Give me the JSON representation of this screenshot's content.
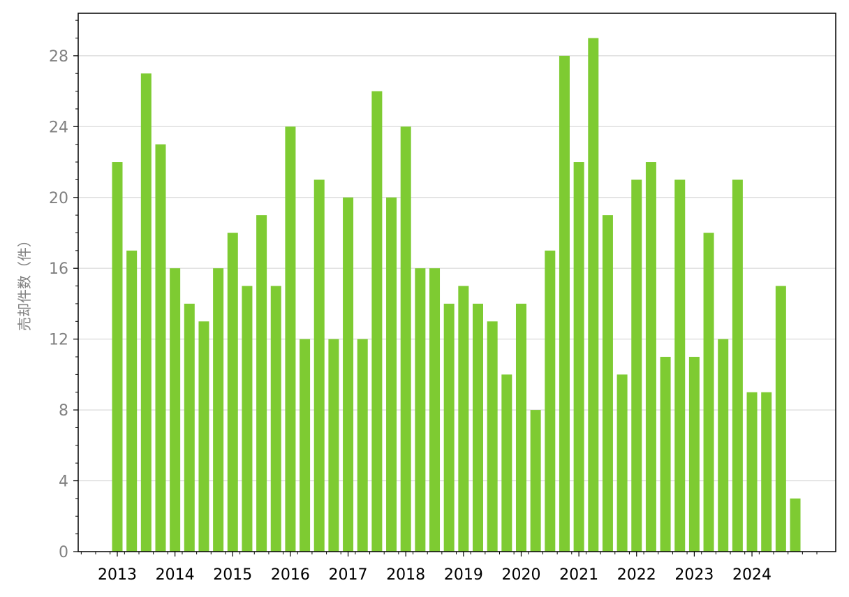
{
  "chart_data": {
    "type": "bar",
    "title": "",
    "xlabel": "",
    "ylabel": "売却件数（件）",
    "ylim": [
      0,
      30.4
    ],
    "yticks": [
      0,
      4,
      8,
      12,
      16,
      20,
      24,
      28
    ],
    "grid": "horizontal",
    "bar_color": "#7ecb32",
    "grid_color": "#d9d9d9",
    "year_labels": [
      "2013",
      "2014",
      "2015",
      "2016",
      "2017",
      "2018",
      "2019",
      "2020",
      "2021",
      "2022",
      "2023",
      "2024"
    ],
    "quarters": [
      "2013Q1",
      "2013Q2",
      "2013Q3",
      "2013Q4",
      "2014Q1",
      "2014Q2",
      "2014Q3",
      "2014Q4",
      "2015Q1",
      "2015Q2",
      "2015Q3",
      "2015Q4",
      "2016Q1",
      "2016Q2",
      "2016Q3",
      "2016Q4",
      "2017Q1",
      "2017Q2",
      "2017Q3",
      "2017Q4",
      "2018Q1",
      "2018Q2",
      "2018Q3",
      "2018Q4",
      "2019Q1",
      "2019Q2",
      "2019Q3",
      "2019Q4",
      "2020Q1",
      "2020Q2",
      "2020Q3",
      "2020Q4",
      "2021Q1",
      "2021Q2",
      "2021Q3",
      "2021Q4",
      "2022Q1",
      "2022Q2",
      "2022Q3",
      "2022Q4",
      "2023Q1",
      "2023Q2",
      "2023Q3",
      "2023Q4",
      "2024Q1",
      "2024Q2",
      "2024Q3",
      "2024Q4"
    ],
    "values": [
      22,
      17,
      27,
      23,
      16,
      14,
      13,
      16,
      18,
      15,
      19,
      15,
      24,
      12,
      21,
      12,
      20,
      12,
      26,
      20,
      24,
      16,
      16,
      14,
      15,
      14,
      13,
      10,
      14,
      8,
      17,
      28,
      22,
      29,
      19,
      10,
      21,
      22,
      11,
      21,
      11,
      18,
      12,
      21,
      9,
      9,
      15,
      3
    ]
  }
}
